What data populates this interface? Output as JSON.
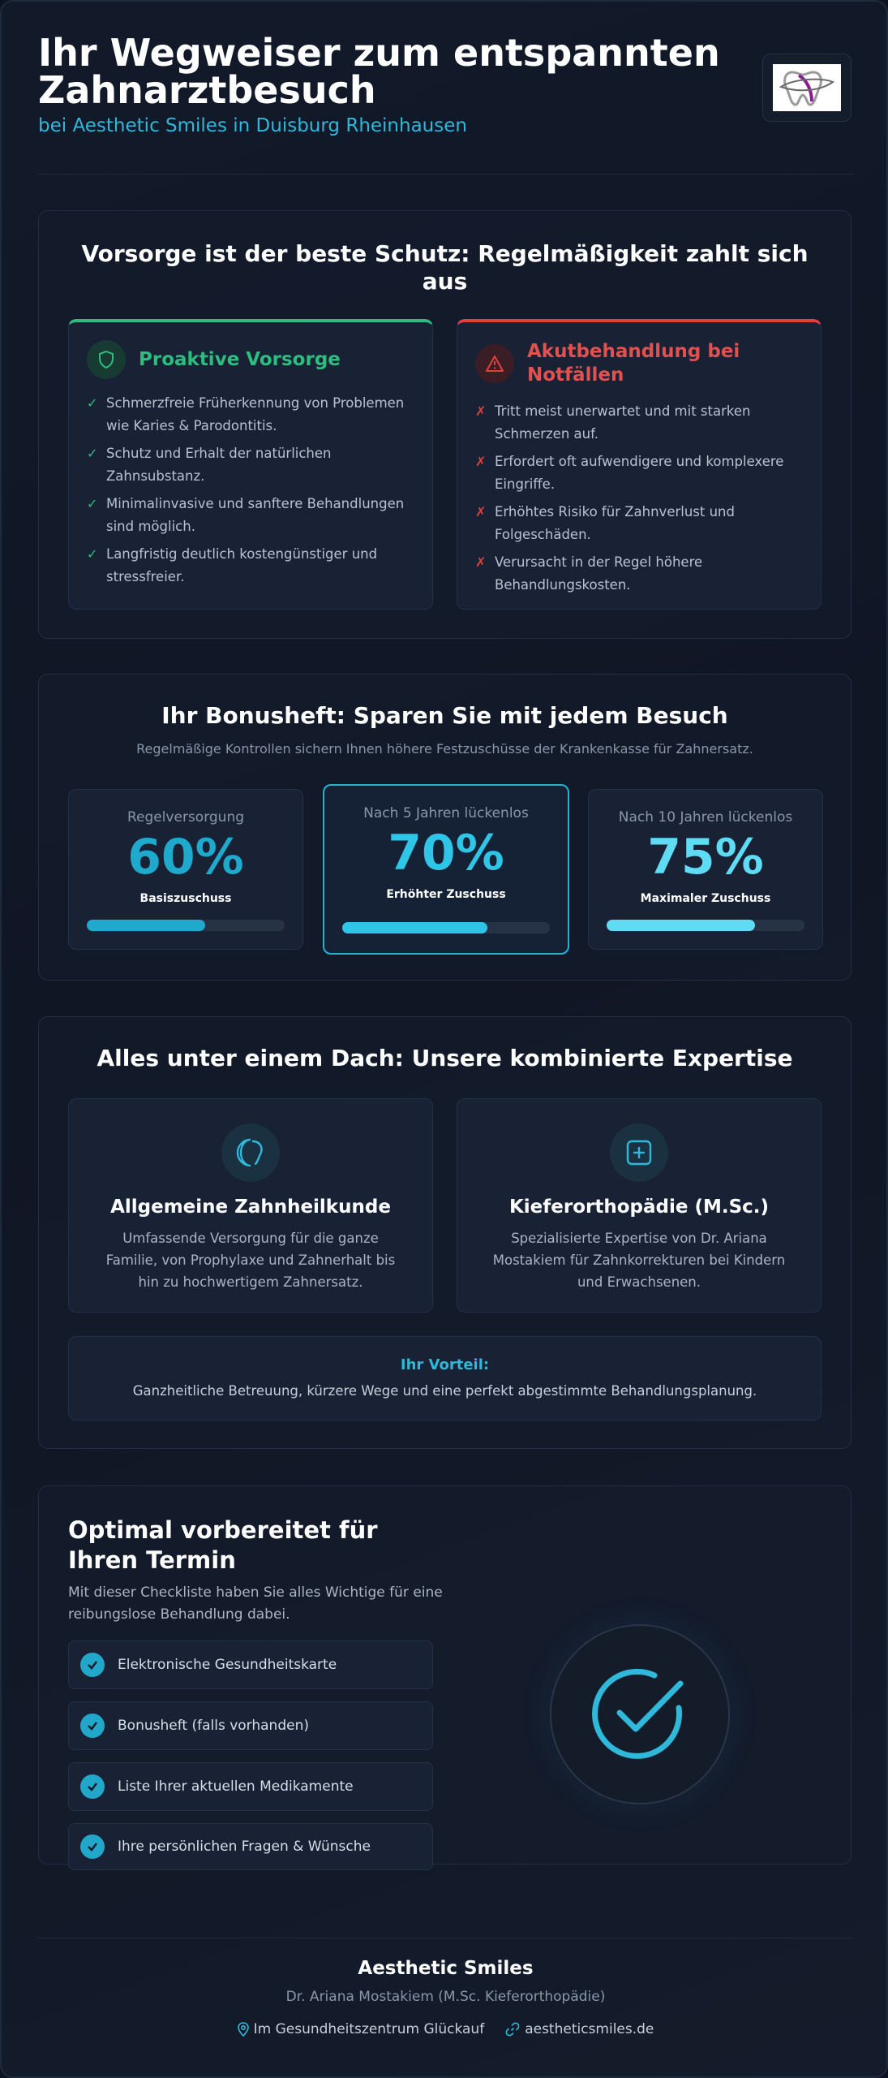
{
  "header": {
    "title": "Ihr Wegweiser zum entspannten Zahnarztbesuch",
    "subtitle": "bei Aesthetic Smiles in Duisburg Rheinhausen"
  },
  "prevention": {
    "title": "Vorsorge ist der beste Schutz: Regelmäßigkeit zahlt sich aus",
    "proactive": {
      "title": "Proaktive Vorsorge",
      "icon": "shield-icon",
      "color": "#2dbd7e",
      "items": [
        "Schmerzfreie Früherkennung von Problemen wie Karies & Parodontitis.",
        "Schutz und Erhalt der natürlichen Zahnsubstanz.",
        "Minimalinvasive und sanftere Behandlungen sind möglich.",
        "Langfristig deutlich kostengünstiger und stressfreier."
      ]
    },
    "acute": {
      "title": "Akutbehandlung bei Notfällen",
      "icon": "warning-icon",
      "color": "#e0413f",
      "items": [
        "Tritt meist unerwartet und mit starken Schmerzen auf.",
        "Erfordert oft aufwendigere und komplexere Eingriffe.",
        "Erhöhtes Risiko für Zahnverlust und Folgeschäden.",
        "Verursacht in der Regel höhere Behandlungskosten."
      ]
    }
  },
  "bonus": {
    "title": "Ihr Bonusheft: Sparen Sie mit jedem Besuch",
    "subtitle": "Regelmäßige Kontrollen sichern Ihnen höhere Festzuschüsse der Krankenkasse für Zahnersatz.",
    "tiers": [
      {
        "label": "Regelversorgung",
        "percent": "60%",
        "desc": "Basiszuschuss",
        "fill": 0.6,
        "color": "#1fa9cc"
      },
      {
        "label": "Nach 5 Jahren lückenlos",
        "percent": "70%",
        "desc": "Erhöhter Zuschuss",
        "fill": 0.7,
        "color": "#2fc5e6"
      },
      {
        "label": "Nach 10 Jahren lückenlos",
        "percent": "75%",
        "desc": "Maximaler Zuschuss",
        "fill": 0.75,
        "color": "#5fdcf3"
      }
    ]
  },
  "expertise": {
    "title": "Alles unter einem Dach: Unsere kombinierte Expertise",
    "general": {
      "title": "Allgemeine Zahnheilkunde",
      "icon": "tooth-icon",
      "text": "Umfassende Versorgung für die ganze Familie, von Prophylaxe und Zahnerhalt bis hin zu hochwertigem Zahnersatz."
    },
    "ortho": {
      "title": "Kieferorthopädie (M.Sc.)",
      "icon": "plus-square-icon",
      "text": "Spezialisierte Expertise von Dr. Ariana Mostakiem für Zahnkorrekturen bei Kindern und Erwachsenen."
    },
    "advantage": {
      "title": "Ihr Vorteil:",
      "text": "Ganzheitliche Betreuung, kürzere Wege und eine perfekt abgestimmte Behandlungsplanung."
    }
  },
  "prep": {
    "title": "Optimal vorbereitet für Ihren Termin",
    "text": "Mit dieser Checkliste haben Sie alles Wichtige für eine reibungslose Behandlung dabei.",
    "items": [
      "Elektronische Gesundheitskarte",
      "Bonusheft (falls vorhanden)",
      "Liste Ihrer aktuellen Medikamente",
      "Ihre persönlichen Fragen & Wünsche"
    ],
    "icon": "check-circle-icon"
  },
  "footer": {
    "name": "Aesthetic Smiles",
    "doctor": "Dr. Ariana Mostakiem (M.Sc. Kieferorthopädie)",
    "location": "Im Gesundheitszentrum Glückauf",
    "website": "aestheticsmiles.de"
  },
  "colors": {
    "accent": "#2fb8d9",
    "green": "#2dbd7e",
    "red": "#e0413f"
  }
}
